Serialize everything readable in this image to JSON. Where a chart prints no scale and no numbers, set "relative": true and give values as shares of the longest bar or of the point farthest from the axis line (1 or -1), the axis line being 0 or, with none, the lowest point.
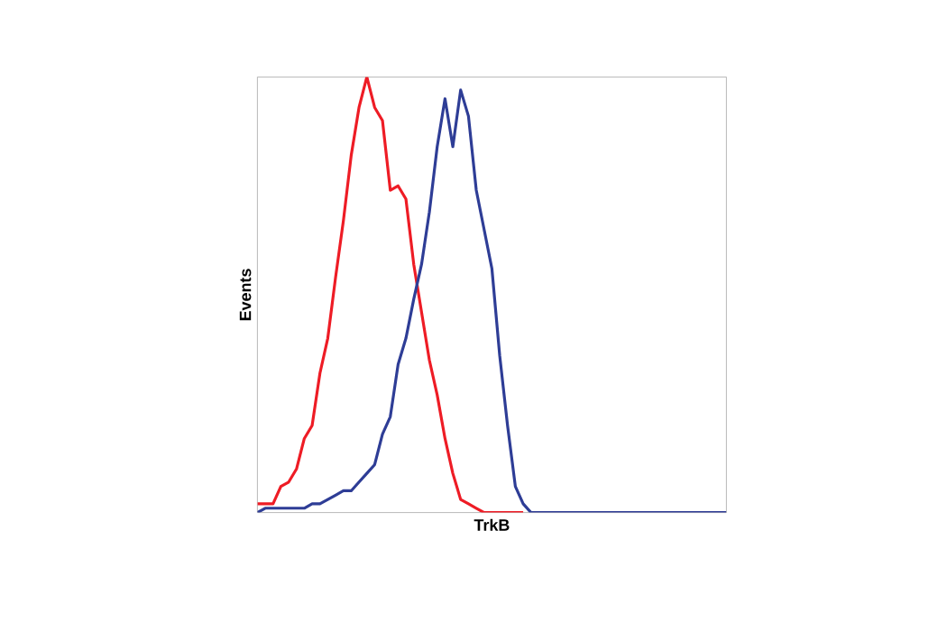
{
  "chart_data": {
    "type": "line",
    "xlabel": "TrkB",
    "ylabel": "Events",
    "relative": true,
    "marker": "none",
    "line_style": "solid",
    "categories": [
      null,
      null,
      null,
      null,
      null,
      null,
      null,
      null,
      null,
      null,
      null,
      null,
      null,
      null,
      null,
      null,
      null,
      null,
      null,
      null,
      null,
      null,
      null,
      null,
      null,
      null,
      null,
      null,
      null,
      null,
      null,
      null,
      null,
      null,
      null,
      null,
      null,
      null,
      null,
      null,
      null,
      null,
      null,
      null,
      null,
      null,
      null,
      null,
      null,
      null,
      null,
      null,
      null,
      null,
      null,
      null,
      null,
      null,
      null,
      null,
      null
    ],
    "series": [
      {
        "color": "#ee1c25",
        "values": [
          0.02,
          0.02,
          0.02,
          0.06,
          0.07,
          0.1,
          0.17,
          0.2,
          0.32,
          0.4,
          0.54,
          0.67,
          0.82,
          0.93,
          1.0,
          0.93,
          0.9,
          0.74,
          0.75,
          0.72,
          0.57,
          0.46,
          0.35,
          0.27,
          0.17,
          0.09,
          0.03,
          0.02,
          0.01,
          0,
          0,
          0,
          0,
          0,
          0,
          null,
          null,
          null,
          null,
          null,
          null,
          null,
          null,
          null,
          null,
          null,
          null,
          null,
          null,
          null,
          null,
          null,
          null,
          null,
          null,
          null,
          null,
          null,
          null,
          null,
          null
        ]
      },
      {
        "color": "#2e3d96",
        "values": [
          0,
          0.01,
          0.01,
          0.01,
          0.01,
          0.01,
          0.01,
          0.02,
          0.02,
          0.03,
          0.04,
          0.05,
          0.05,
          0.07,
          0.09,
          0.11,
          0.18,
          0.22,
          0.34,
          0.4,
          0.49,
          0.57,
          0.69,
          0.84,
          0.95,
          0.84,
          0.97,
          0.91,
          0.74,
          0.65,
          0.56,
          0.36,
          0.2,
          0.06,
          0.02,
          0,
          0,
          0,
          0,
          0,
          0,
          0,
          0,
          0,
          0,
          0,
          0,
          0,
          0,
          0,
          0,
          0,
          0,
          0,
          0,
          0,
          0,
          0,
          0,
          0,
          0
        ]
      }
    ]
  }
}
